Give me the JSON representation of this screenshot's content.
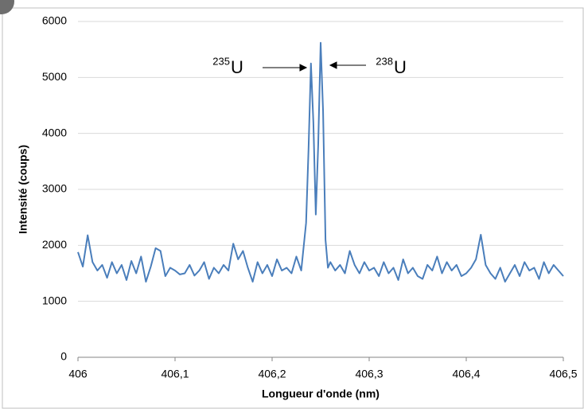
{
  "chart_data": {
    "type": "line",
    "x_label": "Longueur d'onde (nm)",
    "y_label": "Intensité (coups)",
    "annotations": [
      {
        "text": "235",
        "sub": "U"
      },
      {
        "text": "238",
        "sub": "U"
      }
    ],
    "color": "#4a7ebb",
    "x": [
      406,
      406.005,
      406.01,
      406.015,
      406.02,
      406.025,
      406.03,
      406.035,
      406.04,
      406.045,
      406.05,
      406.055,
      406.06,
      406.065,
      406.07,
      406.075,
      406.08,
      406.085,
      406.09,
      406.095,
      406.1,
      406.105,
      406.11,
      406.115,
      406.12,
      406.125,
      406.13,
      406.135,
      406.14,
      406.145,
      406.15,
      406.155,
      406.16,
      406.165,
      406.17,
      406.175,
      406.18,
      406.185,
      406.19,
      406.195,
      406.2,
      406.205,
      406.21,
      406.215,
      406.22,
      406.225,
      406.23,
      406.235,
      406.2375,
      406.24,
      406.2425,
      406.245,
      406.2475,
      406.25,
      406.2525,
      406.255,
      406.2575,
      406.26,
      406.265,
      406.27,
      406.275,
      406.28,
      406.285,
      406.29,
      406.295,
      406.3,
      406.305,
      406.31,
      406.315,
      406.32,
      406.325,
      406.33,
      406.335,
      406.34,
      406.345,
      406.35,
      406.355,
      406.36,
      406.365,
      406.37,
      406.375,
      406.38,
      406.385,
      406.39,
      406.395,
      406.4,
      406.405,
      406.41,
      406.415,
      406.42,
      406.425,
      406.43,
      406.435,
      406.44,
      406.445,
      406.45,
      406.455,
      406.46,
      406.465,
      406.47,
      406.475,
      406.48,
      406.485,
      406.49,
      406.495,
      406.5
    ],
    "values": [
      1880,
      1620,
      2180,
      1700,
      1550,
      1650,
      1420,
      1700,
      1500,
      1650,
      1380,
      1720,
      1500,
      1800,
      1350,
      1620,
      1950,
      1900,
      1450,
      1600,
      1550,
      1480,
      1500,
      1650,
      1460,
      1550,
      1700,
      1400,
      1600,
      1500,
      1650,
      1550,
      2030,
      1750,
      1900,
      1600,
      1350,
      1700,
      1500,
      1650,
      1450,
      1750,
      1550,
      1600,
      1500,
      1800,
      1550,
      2400,
      3700,
      5250,
      4200,
      2550,
      3800,
      5620,
      4400,
      2100,
      1600,
      1700,
      1550,
      1650,
      1500,
      1900,
      1650,
      1500,
      1700,
      1550,
      1600,
      1450,
      1700,
      1500,
      1600,
      1380,
      1750,
      1500,
      1600,
      1450,
      1400,
      1650,
      1550,
      1800,
      1500,
      1700,
      1550,
      1650,
      1450,
      1500,
      1600,
      1750,
      2190,
      1650,
      1500,
      1400,
      1600,
      1350,
      1500,
      1650,
      1450,
      1700,
      1550,
      1600,
      1400,
      1700,
      1500,
      1650,
      1550,
      1450
    ],
    "xlim": [
      406,
      406.5
    ],
    "xticks": [
      406,
      {
        "value": 406.1,
        "label": "406,1"
      },
      {
        "value": 406.2,
        "label": "406,2"
      },
      {
        "value": 406.3,
        "label": "406,3"
      },
      {
        "value": 406.4,
        "label": "406,4"
      },
      {
        "value": 406.5,
        "label": "406,5"
      }
    ],
    "ylim": [
      0,
      6000
    ],
    "yticks": [
      0,
      1000,
      2000,
      3000,
      4000,
      5000,
      6000
    ],
    "grid": true
  }
}
